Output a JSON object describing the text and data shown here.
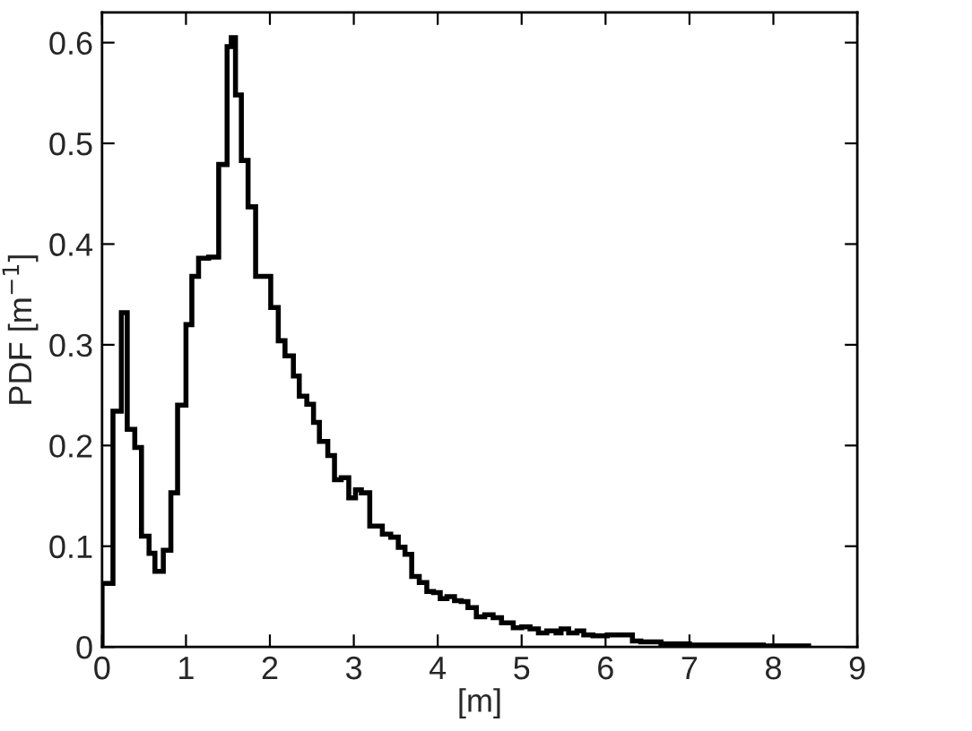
{
  "chart_data": {
    "type": "histogram",
    "xlabel": "[m]",
    "ylabel": "PDF [m$^{−1}$]",
    "bins": [
      0,
      0.13,
      0.23,
      0.3,
      0.39,
      0.47,
      0.56,
      0.63,
      0.73,
      0.82,
      0.9,
      1.0,
      1.07,
      1.15,
      1.27,
      1.39,
      1.49,
      1.54,
      1.59,
      1.66,
      1.74,
      1.83,
      1.92,
      2.01,
      2.1,
      2.18,
      2.28,
      2.35,
      2.44,
      2.52,
      2.59,
      2.69,
      2.77,
      2.85,
      2.94,
      3.02,
      3.09,
      3.19,
      3.27,
      3.34,
      3.44,
      3.53,
      3.61,
      3.69,
      3.78,
      3.87,
      3.95,
      4.03,
      4.11,
      4.2,
      4.28,
      4.36,
      4.46,
      4.56,
      4.66,
      4.76,
      4.9,
      5.0,
      5.1,
      5.2,
      5.3,
      5.41,
      5.47,
      5.56,
      5.66,
      5.74,
      5.85,
      6.02,
      6.32,
      6.42,
      6.66,
      7.0,
      7.34,
      7.88,
      8.28,
      8.42
    ],
    "values": [
      0.063,
      0.234,
      0.332,
      0.216,
      0.198,
      0.11,
      0.093,
      0.075,
      0.096,
      0.153,
      0.24,
      0.32,
      0.368,
      0.386,
      0.387,
      0.479,
      0.596,
      0.605,
      0.548,
      0.483,
      0.437,
      0.368,
      0.368,
      0.337,
      0.304,
      0.289,
      0.269,
      0.249,
      0.241,
      0.223,
      0.204,
      0.19,
      0.166,
      0.168,
      0.148,
      0.156,
      0.153,
      0.12,
      0.12,
      0.112,
      0.109,
      0.099,
      0.092,
      0.07,
      0.064,
      0.055,
      0.054,
      0.048,
      0.05,
      0.046,
      0.045,
      0.039,
      0.03,
      0.032,
      0.029,
      0.024,
      0.019,
      0.02,
      0.018,
      0.014,
      0.016,
      0.014,
      0.018,
      0.014,
      0.016,
      0.012,
      0.011,
      0.012,
      0.006,
      0.005,
      0.003,
      0.002,
      0.002,
      0.001,
      0.001
    ],
    "color": "#000000",
    "xlim": [
      0,
      9
    ],
    "xticks": [
      0,
      1,
      2,
      3,
      4,
      5,
      6,
      7,
      8,
      9
    ],
    "ylim": [
      0,
      0.63
    ],
    "yticks": [
      0,
      0.1,
      0.2,
      0.3,
      0.4,
      0.5,
      0.6
    ],
    "grid": false
  }
}
